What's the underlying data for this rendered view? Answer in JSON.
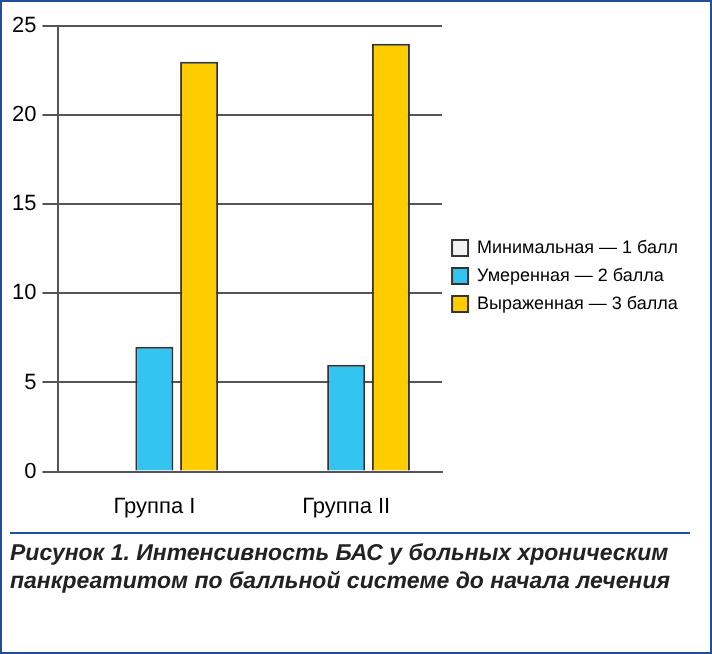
{
  "chart_data": {
    "type": "bar",
    "categories": [
      "Группа I",
      "Группа II"
    ],
    "series": [
      {
        "name": "Минимальная — 1 балл",
        "color": "#f2f2f2",
        "values": [
          0,
          0
        ]
      },
      {
        "name": "Умеренная — 2 балла",
        "color": "#33c4ef",
        "values": [
          7,
          6
        ]
      },
      {
        "name": "Выраженная — 3 балла",
        "color": "#ffcc00",
        "values": [
          23,
          24
        ]
      }
    ],
    "ylim": [
      0,
      25
    ],
    "yticks": [
      0,
      5,
      10,
      15,
      20,
      25
    ],
    "grid": "y",
    "legend": "right",
    "annotations": [
      "Рисунок 1. Интенсивность БАС у больных хроническим панкреатитом по балльной системе до начала лечения"
    ]
  }
}
